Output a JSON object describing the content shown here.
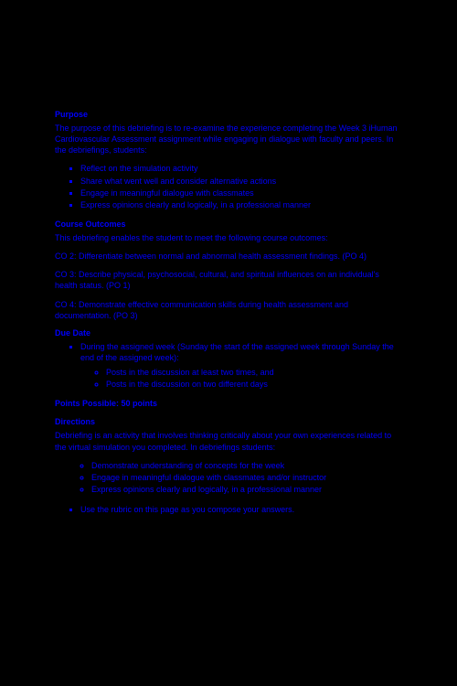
{
  "purpose": {
    "heading": "Purpose",
    "text": "The purpose of this debriefing is to re-examine the experience completing the Week 3 iHuman Cardiovascular Assessment assignment while engaging in dialogue with faculty and peers. In the debriefings, students:",
    "items": [
      "Reflect on the simulation activity",
      "Share what went well and consider alternative actions",
      "Engage in meaningful dialogue with classmates",
      "Express opinions clearly and logically, in a professional manner"
    ]
  },
  "outcomes": {
    "heading": "Course Outcomes",
    "intro": "This debriefing enables the student to meet the following course outcomes:",
    "co2": "CO 2: Differentiate between normal and abnormal health assessment findings. (PO 4)",
    "co3": "CO 3: Describe physical, psychosocial, cultural, and spiritual influences on an individual's health status. (PO 1)",
    "co4": "CO 4: Demonstrate effective communication skills during health assessment and documentation. (PO 3)"
  },
  "due": {
    "heading": "Due Date",
    "item1": "During the assigned week (Sunday the start of the assigned week through Sunday the end of the assigned week):",
    "sub1": "Posts in the discussion at least two times, and",
    "sub2": "Posts in the discussion on two different days"
  },
  "points": {
    "text": "Points Possible: 50 points"
  },
  "directions": {
    "heading": "Directions",
    "text": "Debriefing is an activity that involves thinking critically about your own experiences related to the virtual simulation you completed. In debriefings students:",
    "sub1": "Demonstrate understanding of concepts for the week",
    "sub2": "Engage in meaningful dialogue with classmates and/or instructor",
    "sub3": "Express opinions clearly and logically, in a professional manner",
    "item2": "Use the rubric on this page as you compose your answers."
  }
}
